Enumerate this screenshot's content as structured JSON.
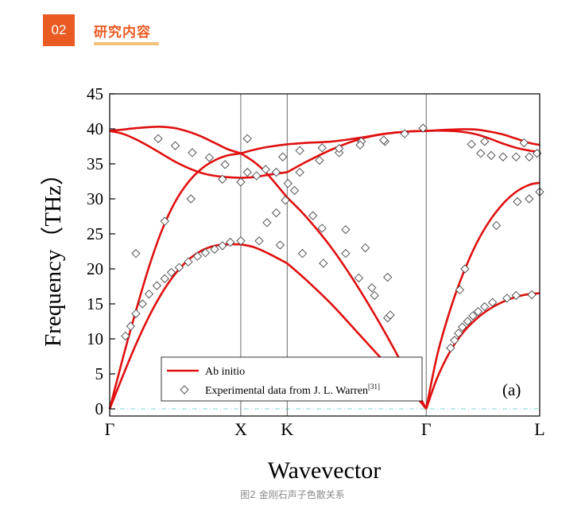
{
  "header": {
    "badge_number": "02",
    "section_title": "研究内容",
    "accent_color": "#ea5a23",
    "underline_color": "#f2c27a"
  },
  "caption": "图2 金刚石声子色散关系",
  "chart_data": {
    "type": "line",
    "panel_label": "(a)",
    "xlabel": "Wavevector",
    "ylabel": "Frequency（THz）",
    "ylim": [
      0,
      45
    ],
    "yticks": [
      0,
      5,
      10,
      15,
      20,
      25,
      30,
      35,
      40,
      45
    ],
    "high_symmetry_points": [
      {
        "label": "Γ",
        "x": 0
      },
      {
        "label": "X",
        "x": 1.0
      },
      {
        "label": "K",
        "x": 1.3535
      },
      {
        "label": "Γ",
        "x": 2.4142
      },
      {
        "label": "L",
        "x": 3.28
      }
    ],
    "grid": false,
    "legend_position": "bottom-left",
    "legend": [
      {
        "label": "Ab initio",
        "marker": "red-line"
      },
      {
        "label": "Experimental data from J. L. Warren",
        "superscript": "[31]",
        "marker": "open-diamond"
      }
    ],
    "colors": {
      "theory": "#e01010",
      "experiment": "#444444",
      "zero_line": "#7fd6d6"
    },
    "series": [
      {
        "name": "Ab initio",
        "segments": [
          {
            "x": [
              0,
              0.1,
              0.2,
              0.3,
              0.4,
              0.5,
              0.6,
              0.7,
              0.8,
              0.9,
              1.0
            ],
            "y": [
              0,
              4.7,
              9.2,
              13.2,
              16.6,
              19.3,
              21.3,
              22.6,
              23.3,
              23.5,
              23.5
            ]
          },
          {
            "x": [
              0,
              0.1,
              0.2,
              0.3,
              0.4,
              0.5,
              0.6,
              0.7,
              0.8,
              0.9,
              1.0
            ],
            "y": [
              0,
              7.2,
              14.0,
              20.3,
              25.6,
              29.6,
              32.4,
              34.3,
              35.5,
              36.2,
              36.5
            ]
          },
          {
            "x": [
              0,
              0.1,
              0.2,
              0.3,
              0.4,
              0.5,
              0.6,
              0.7,
              0.8,
              0.9,
              1.0
            ],
            "y": [
              39.7,
              39.9,
              40.1,
              40.25,
              40.3,
              40.1,
              39.6,
              38.9,
              38.0,
              37.1,
              36.5
            ]
          },
          {
            "x": [
              0,
              0.1,
              0.2,
              0.3,
              0.4,
              0.5,
              0.6,
              0.7,
              0.8,
              0.9,
              1.0
            ],
            "y": [
              39.7,
              39.3,
              38.5,
              37.5,
              36.4,
              35.3,
              34.4,
              33.7,
              33.3,
              33.1,
              33.0
            ]
          },
          {
            "x": [
              1.0,
              1.1,
              1.2,
              1.3535
            ],
            "y": [
              23.5,
              23.1,
              22.3,
              20.8
            ]
          },
          {
            "x": [
              1.0,
              1.1,
              1.2,
              1.3535
            ],
            "y": [
              36.5,
              35.3,
              33.6,
              30.2
            ]
          },
          {
            "x": [
              1.0,
              1.1,
              1.2,
              1.3535
            ],
            "y": [
              33.0,
              33.1,
              33.4,
              33.8
            ]
          },
          {
            "x": [
              1.0,
              1.1,
              1.2,
              1.3535
            ],
            "y": [
              36.5,
              37.0,
              37.4,
              37.8
            ]
          },
          {
            "x": [
              1.3535,
              1.5,
              1.7,
              1.9,
              2.1,
              2.3,
              2.4142
            ],
            "y": [
              20.8,
              18.4,
              14.8,
              10.7,
              6.6,
              2.6,
              0
            ]
          },
          {
            "x": [
              1.3535,
              1.5,
              1.7,
              1.9,
              2.1,
              2.3,
              2.4142
            ],
            "y": [
              30.2,
              27.4,
              22.8,
              17.2,
              10.9,
              4.0,
              0
            ]
          },
          {
            "x": [
              1.3535,
              1.5,
              1.7,
              1.9,
              2.1,
              2.3,
              2.4142
            ],
            "y": [
              33.8,
              35.3,
              37.1,
              38.5,
              39.3,
              39.65,
              39.7
            ]
          },
          {
            "x": [
              1.3535,
              1.5,
              1.7,
              1.9,
              2.1,
              2.3,
              2.4142
            ],
            "y": [
              37.8,
              38.0,
              38.2,
              38.7,
              39.3,
              39.65,
              39.7
            ]
          },
          {
            "x": [
              2.4142,
              2.5,
              2.6,
              2.7,
              2.8,
              2.9,
              3.0,
              3.1,
              3.2,
              3.28
            ],
            "y": [
              0,
              4.5,
              8.3,
              11.0,
              12.9,
              14.3,
              15.3,
              16.0,
              16.4,
              16.5
            ]
          },
          {
            "x": [
              2.4142,
              2.5,
              2.6,
              2.7,
              2.8,
              2.9,
              3.0,
              3.1,
              3.2,
              3.28
            ],
            "y": [
              0,
              7.8,
              14.3,
              19.5,
              23.7,
              26.9,
              29.3,
              31.0,
              32.0,
              32.3
            ]
          },
          {
            "x": [
              2.4142,
              2.5,
              2.6,
              2.7,
              2.8,
              2.9,
              3.0,
              3.1,
              3.2,
              3.28
            ],
            "y": [
              39.7,
              39.8,
              39.9,
              39.95,
              39.9,
              39.6,
              39.2,
              38.6,
              38.0,
              37.7
            ]
          },
          {
            "x": [
              2.4142,
              2.5,
              2.6,
              2.7,
              2.8,
              2.9,
              3.0,
              3.1,
              3.2,
              3.28
            ],
            "y": [
              39.7,
              39.75,
              39.7,
              39.55,
              39.2,
              38.6,
              37.9,
              37.3,
              36.9,
              36.7
            ]
          }
        ]
      },
      {
        "name": "Experimental data from J. L. Warren",
        "points": [
          {
            "x": 0.37,
            "y": 38.6
          },
          {
            "x": 0.5,
            "y": 37.6
          },
          {
            "x": 0.63,
            "y": 36.6
          },
          {
            "x": 0.76,
            "y": 35.9
          },
          {
            "x": 0.88,
            "y": 34.9
          },
          {
            "x": 1.05,
            "y": 33.8
          },
          {
            "x": 1.05,
            "y": 38.6
          },
          {
            "x": 1.32,
            "y": 36.0
          },
          {
            "x": 1.19,
            "y": 34.2
          },
          {
            "x": 0.12,
            "y": 10.4
          },
          {
            "x": 0.16,
            "y": 11.8
          },
          {
            "x": 0.2,
            "y": 13.6
          },
          {
            "x": 0.25,
            "y": 15.0
          },
          {
            "x": 0.3,
            "y": 16.4
          },
          {
            "x": 0.36,
            "y": 17.6
          },
          {
            "x": 0.42,
            "y": 18.6
          },
          {
            "x": 0.47,
            "y": 19.5
          },
          {
            "x": 0.53,
            "y": 20.2
          },
          {
            "x": 0.6,
            "y": 21.0
          },
          {
            "x": 0.67,
            "y": 21.8
          },
          {
            "x": 0.73,
            "y": 22.3
          },
          {
            "x": 0.8,
            "y": 22.8
          },
          {
            "x": 0.86,
            "y": 23.3
          },
          {
            "x": 0.92,
            "y": 23.8
          },
          {
            "x": 1.0,
            "y": 24.0
          },
          {
            "x": 0.2,
            "y": 22.2
          },
          {
            "x": 0.42,
            "y": 26.8
          },
          {
            "x": 0.62,
            "y": 30.0
          },
          {
            "x": 0.86,
            "y": 32.8
          },
          {
            "x": 1.0,
            "y": 32.4
          },
          {
            "x": 1.12,
            "y": 33.3
          },
          {
            "x": 1.14,
            "y": 24.0
          },
          {
            "x": 1.2,
            "y": 26.6
          },
          {
            "x": 1.27,
            "y": 28.0
          },
          {
            "x": 1.34,
            "y": 29.8
          },
          {
            "x": 1.41,
            "y": 31.2
          },
          {
            "x": 1.36,
            "y": 32.2
          },
          {
            "x": 1.27,
            "y": 33.8
          },
          {
            "x": 1.45,
            "y": 36.9
          },
          {
            "x": 1.62,
            "y": 37.3
          },
          {
            "x": 1.75,
            "y": 36.6
          },
          {
            "x": 1.3,
            "y": 23.4
          },
          {
            "x": 1.47,
            "y": 22.2
          },
          {
            "x": 1.63,
            "y": 20.8
          },
          {
            "x": 1.9,
            "y": 18.7
          },
          {
            "x": 2.02,
            "y": 16.2
          },
          {
            "x": 2.12,
            "y": 13.0
          },
          {
            "x": 1.55,
            "y": 27.6
          },
          {
            "x": 1.62,
            "y": 25.8
          },
          {
            "x": 1.8,
            "y": 22.2
          },
          {
            "x": 2.0,
            "y": 17.3
          },
          {
            "x": 2.14,
            "y": 13.4
          },
          {
            "x": 1.8,
            "y": 25.6
          },
          {
            "x": 1.95,
            "y": 23.0
          },
          {
            "x": 2.12,
            "y": 18.8
          },
          {
            "x": 1.45,
            "y": 33.8
          },
          {
            "x": 1.6,
            "y": 35.5
          },
          {
            "x": 1.75,
            "y": 37.2
          },
          {
            "x": 1.92,
            "y": 38.2
          },
          {
            "x": 2.1,
            "y": 38.2
          },
          {
            "x": 2.25,
            "y": 39.3
          },
          {
            "x": 2.39,
            "y": 40.1
          },
          {
            "x": 1.91,
            "y": 37.7
          },
          {
            "x": 2.09,
            "y": 38.4
          },
          {
            "x": 2.67,
            "y": 17.0
          },
          {
            "x": 2.71,
            "y": 20.0
          },
          {
            "x": 2.95,
            "y": 26.2
          },
          {
            "x": 3.11,
            "y": 29.6
          },
          {
            "x": 3.2,
            "y": 30.0
          },
          {
            "x": 3.28,
            "y": 31.0
          },
          {
            "x": 2.6,
            "y": 8.7
          },
          {
            "x": 2.63,
            "y": 9.8
          },
          {
            "x": 2.66,
            "y": 10.8
          },
          {
            "x": 2.69,
            "y": 11.7
          },
          {
            "x": 2.73,
            "y": 12.5
          },
          {
            "x": 2.77,
            "y": 13.3
          },
          {
            "x": 2.81,
            "y": 13.9
          },
          {
            "x": 2.86,
            "y": 14.6
          },
          {
            "x": 2.92,
            "y": 15.2
          },
          {
            "x": 3.03,
            "y": 15.8
          },
          {
            "x": 3.1,
            "y": 16.2
          },
          {
            "x": 3.22,
            "y": 16.3
          },
          {
            "x": 2.76,
            "y": 37.8
          },
          {
            "x": 2.83,
            "y": 36.5
          },
          {
            "x": 2.91,
            "y": 36.2
          },
          {
            "x": 3.0,
            "y": 36.0
          },
          {
            "x": 3.1,
            "y": 36.0
          },
          {
            "x": 3.2,
            "y": 36.0
          },
          {
            "x": 3.26,
            "y": 36.5
          },
          {
            "x": 2.86,
            "y": 38.2
          },
          {
            "x": 3.16,
            "y": 38.0
          }
        ]
      }
    ]
  }
}
